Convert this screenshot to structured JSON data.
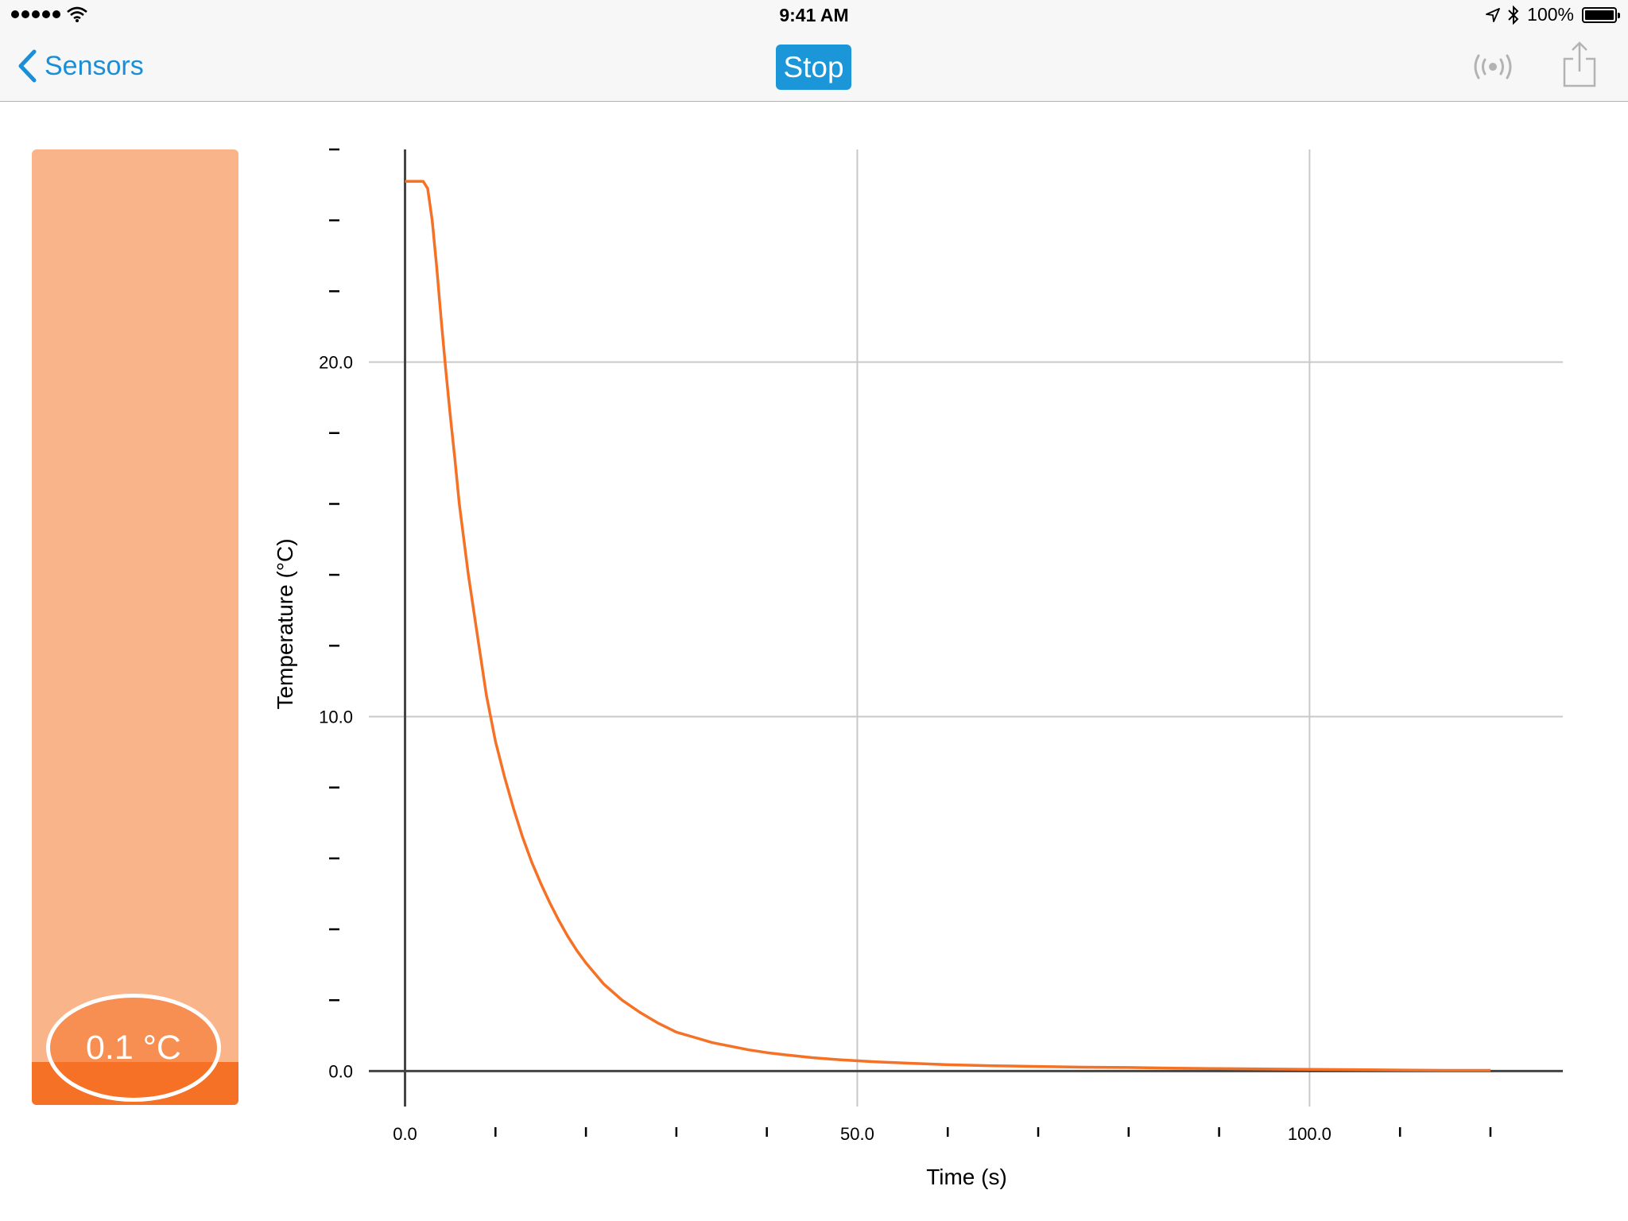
{
  "status_bar": {
    "time": "9:41 AM",
    "battery": "100%"
  },
  "nav": {
    "back_label": "Sensors",
    "stop_label": "Stop",
    "accent_color": "#1a96d9"
  },
  "meter": {
    "reading": "0.1 °C",
    "fill_color": "#f57126",
    "track_color": "#f9b48a"
  },
  "chart_data": {
    "type": "line",
    "xlabel": "Time (s)",
    "ylabel": "Temperature (°C)",
    "xlim": [
      -4,
      128
    ],
    "ylim": [
      -1,
      26
    ],
    "x_ticks": [
      "0.0",
      "50.0",
      "100.0"
    ],
    "y_ticks": [
      "0.0",
      "10.0",
      "20.0"
    ],
    "grid": true,
    "line_color": "#f57126",
    "series": [
      {
        "x": [
          0,
          2,
          2.5,
          3,
          3.5,
          4,
          4.5,
          5,
          5.5,
          6,
          7,
          8,
          9,
          10,
          11,
          12,
          13,
          14,
          15,
          16,
          17,
          18,
          19,
          20,
          22,
          24,
          26,
          28,
          30,
          32,
          34,
          36,
          38,
          40,
          42,
          45,
          48,
          52,
          56,
          60,
          65,
          70,
          75,
          80,
          85,
          90,
          95,
          100,
          105,
          110,
          115,
          120
        ],
        "values": [
          25.1,
          25.1,
          24.9,
          24.0,
          22.7,
          21.2,
          19.8,
          18.5,
          17.3,
          16.0,
          14.0,
          12.3,
          10.6,
          9.3,
          8.3,
          7.4,
          6.6,
          5.9,
          5.3,
          4.75,
          4.25,
          3.8,
          3.4,
          3.05,
          2.45,
          2.0,
          1.65,
          1.35,
          1.1,
          0.95,
          0.8,
          0.7,
          0.6,
          0.52,
          0.46,
          0.38,
          0.32,
          0.26,
          0.22,
          0.18,
          0.15,
          0.13,
          0.11,
          0.1,
          0.08,
          0.07,
          0.06,
          0.05,
          0.04,
          0.03,
          0.02,
          0.02
        ]
      }
    ]
  }
}
